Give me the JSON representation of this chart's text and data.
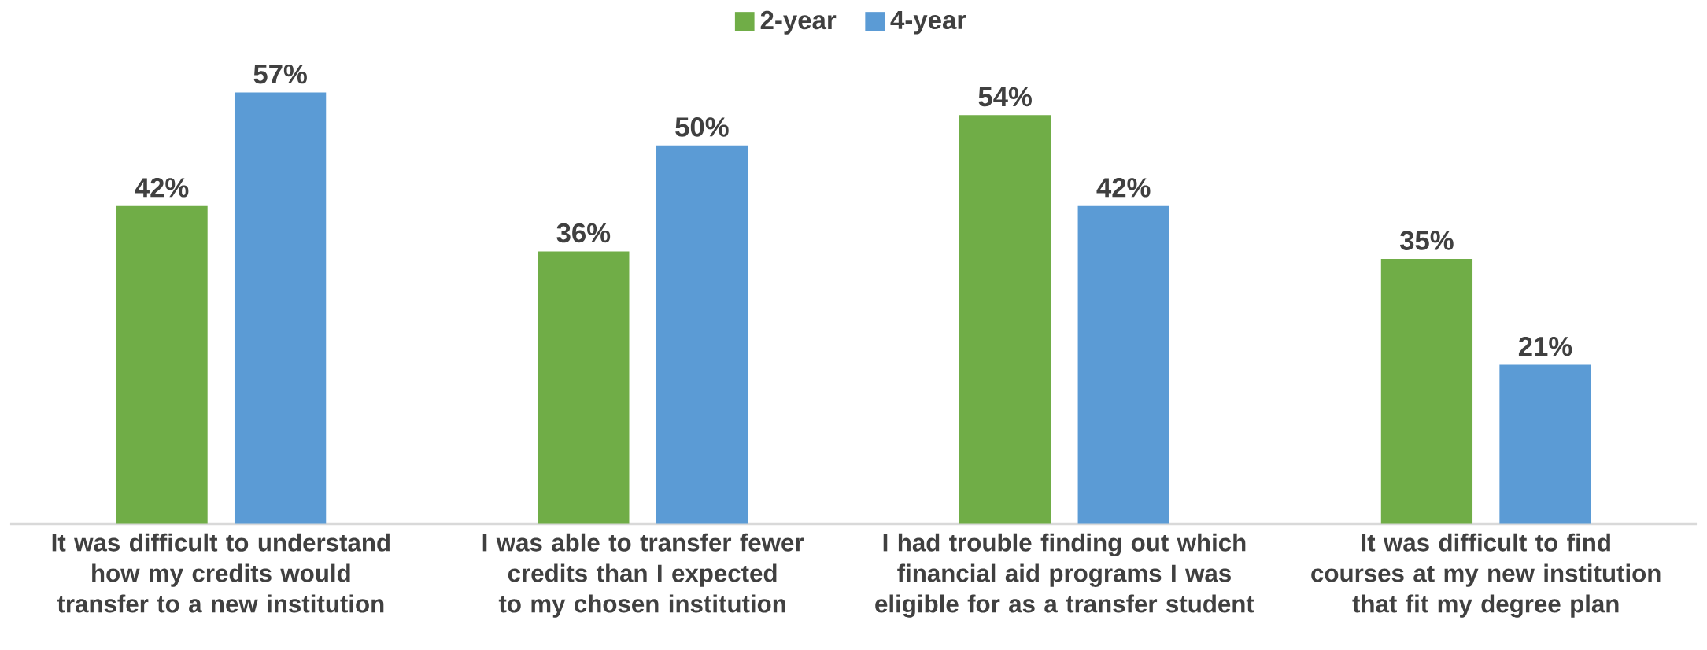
{
  "chart_data": {
    "type": "bar",
    "categories": [
      "It was difficult to understand how my credits would transfer to a new institution",
      "I was able to transfer fewer credits than I expected to my chosen institution",
      "I had trouble finding out which financial aid programs I was eligible for as a transfer student",
      "It was difficult to find courses at my new institution that fit my degree plan"
    ],
    "series": [
      {
        "name": "2-year",
        "color": "#70ad47",
        "values": [
          42,
          36,
          54,
          35
        ],
        "value_labels": [
          "42%",
          "36%",
          "54%",
          "35%"
        ]
      },
      {
        "name": "4-year",
        "color": "#5b9bd5",
        "values": [
          57,
          50,
          42,
          21
        ],
        "value_labels": [
          "57%",
          "50%",
          "42%",
          "21%"
        ]
      }
    ],
    "legend": "top"
  }
}
